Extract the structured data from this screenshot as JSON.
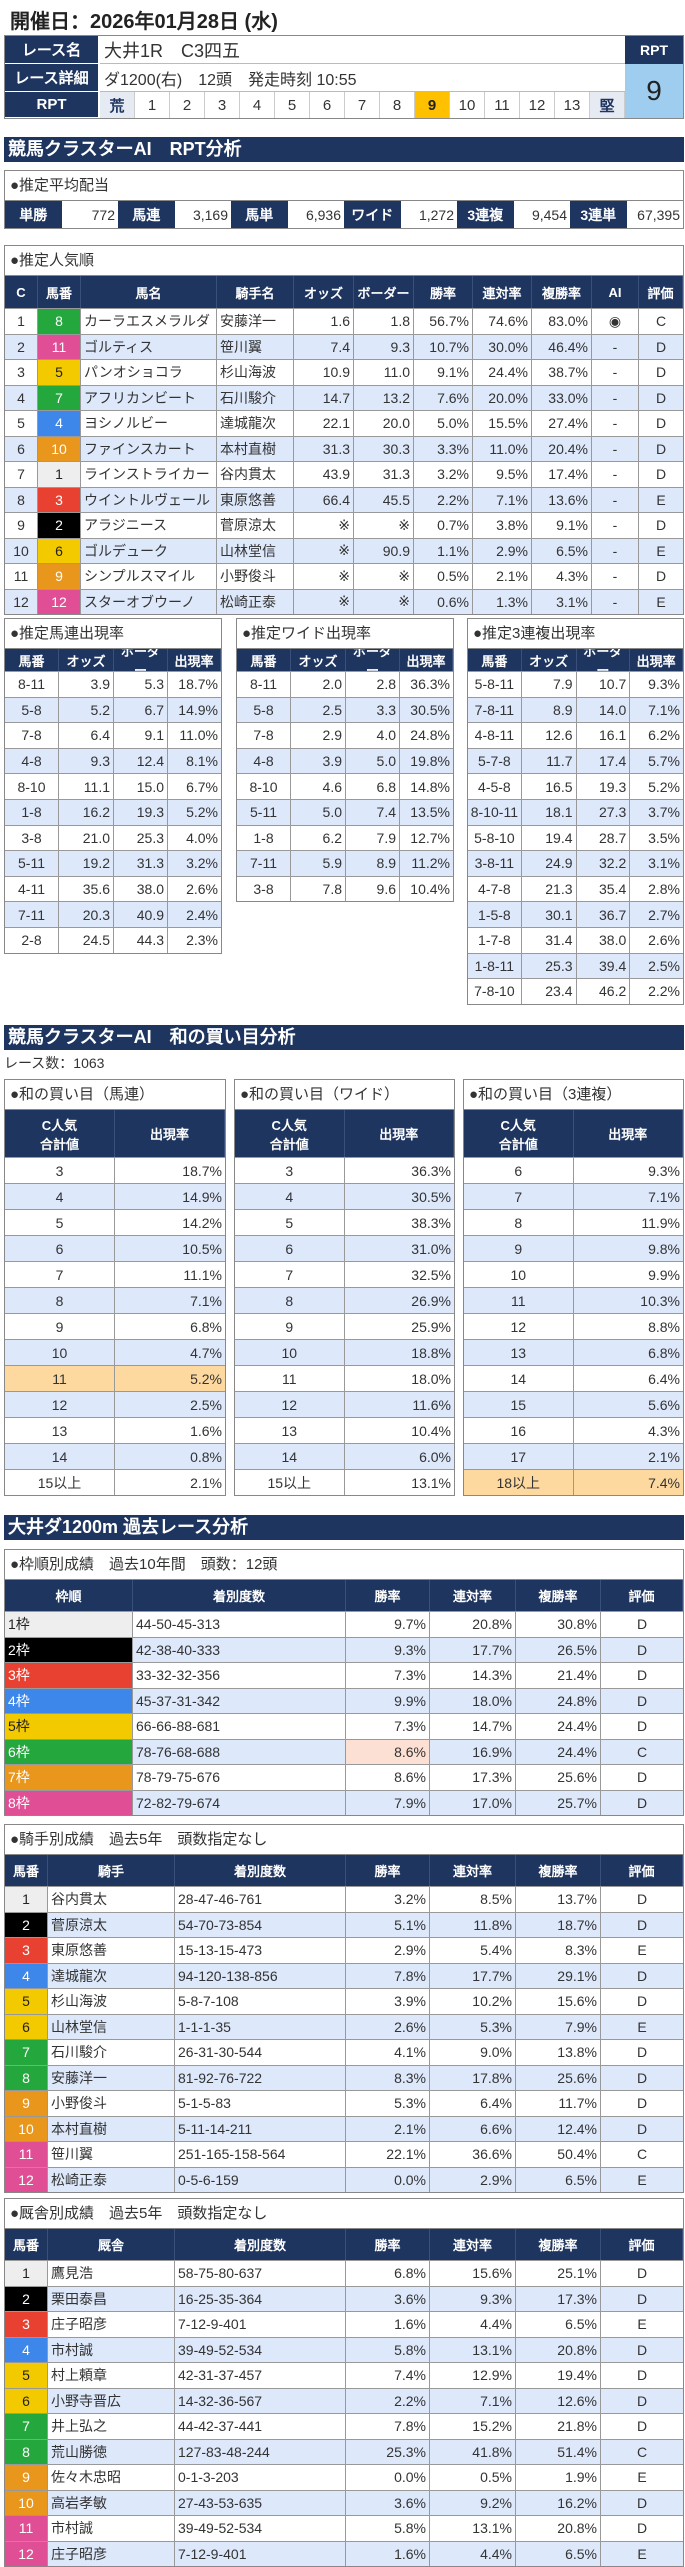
{
  "header": {
    "date": "開催日：2026年01月28日 (水)"
  },
  "race": {
    "name_label": "レース名",
    "name": "大井1R　C3四五",
    "detail_label": "レース詳細",
    "detail": "ダ1200(右)　12頭　発走時刻 10:55",
    "rpt_label": "RPT",
    "rpt_scale": [
      "荒",
      "1",
      "2",
      "3",
      "4",
      "5",
      "6",
      "7",
      "8",
      "9",
      "10",
      "11",
      "12",
      "13",
      "堅"
    ],
    "rpt_selected": "9",
    "rpt_box_label": "RPT",
    "rpt_value": "9"
  },
  "sections": {
    "rpt_analysis": "競馬クラスターAI　RPT分析",
    "sum_analysis": "競馬クラスターAI　和の買い目分析",
    "past": "大井ダ1200m 過去レース分析"
  },
  "colors": {
    "navy": "#1e3560",
    "alt_row": "#dde8fb",
    "highlight": "#fdd9a0",
    "rpt_selected": "#ffc000",
    "rpt_box": "#9fcdf0"
  },
  "frame_colors": {
    "1": {
      "bg": "#eeeeee",
      "fg": "#222"
    },
    "2": {
      "bg": "#000000",
      "fg": "#fff"
    },
    "3": {
      "bg": "#e84131",
      "fg": "#fff"
    },
    "4": {
      "bg": "#3d86ea",
      "fg": "#fff"
    },
    "5": {
      "bg": "#f3ca00",
      "fg": "#222"
    },
    "6": {
      "bg": "#24a83d",
      "fg": "#fff"
    },
    "7": {
      "bg": "#e8961c",
      "fg": "#fff"
    },
    "8": {
      "bg": "#e04f95",
      "fg": "#fff"
    }
  },
  "payout": {
    "title": "●推定平均配当",
    "items": [
      {
        "label": "単勝",
        "value": "772"
      },
      {
        "label": "馬連",
        "value": "3,169"
      },
      {
        "label": "馬単",
        "value": "6,936"
      },
      {
        "label": "ワイド",
        "value": "1,272"
      },
      {
        "label": "3連複",
        "value": "9,454"
      },
      {
        "label": "3連単",
        "value": "67,395"
      }
    ]
  },
  "popularity": {
    "title": "●推定人気順",
    "columns": [
      "C",
      "馬番",
      "馬名",
      "騎手名",
      "オッズ",
      "ボーダー",
      "勝率",
      "連対率",
      "複勝率",
      "AI",
      "評価"
    ],
    "rows": [
      [
        "1",
        "8",
        "カーラエスメラルダ",
        "安藤洋一",
        "1.6",
        "1.8",
        "56.7%",
        "74.6%",
        "83.0%",
        "◉",
        "C"
      ],
      [
        "2",
        "11",
        "ゴルティス",
        "笹川翼",
        "7.4",
        "9.3",
        "10.7%",
        "30.0%",
        "46.4%",
        "-",
        "D"
      ],
      [
        "3",
        "5",
        "パンオショコラ",
        "杉山海波",
        "10.9",
        "11.0",
        "9.1%",
        "24.4%",
        "38.7%",
        "-",
        "D"
      ],
      [
        "4",
        "7",
        "アフリカンビート",
        "石川駿介",
        "14.7",
        "13.2",
        "7.6%",
        "20.0%",
        "33.0%",
        "-",
        "D"
      ],
      [
        "5",
        "4",
        "ヨシノルビー",
        "達城龍次",
        "22.1",
        "20.0",
        "5.0%",
        "15.5%",
        "27.4%",
        "-",
        "D"
      ],
      [
        "6",
        "10",
        "ファインスカート",
        "本村直樹",
        "31.3",
        "30.3",
        "3.3%",
        "11.0%",
        "20.4%",
        "-",
        "D"
      ],
      [
        "7",
        "1",
        "ラインストライカー",
        "谷内貫太",
        "43.9",
        "31.3",
        "3.2%",
        "9.5%",
        "17.4%",
        "-",
        "D"
      ],
      [
        "8",
        "3",
        "ウイントルヴェール",
        "東原悠善",
        "66.4",
        "45.5",
        "2.2%",
        "7.1%",
        "13.6%",
        "-",
        "E"
      ],
      [
        "9",
        "2",
        "アラジニース",
        "菅原涼太",
        "※",
        "※",
        "0.7%",
        "3.8%",
        "9.1%",
        "-",
        "D"
      ],
      [
        "10",
        "6",
        "ゴルデューク",
        "山林堂信",
        "※",
        "90.9",
        "1.1%",
        "2.9%",
        "6.5%",
        "-",
        "E"
      ],
      [
        "11",
        "9",
        "シンプルスマイル",
        "小野俊斗",
        "※",
        "※",
        "0.5%",
        "2.1%",
        "4.3%",
        "-",
        "D"
      ],
      [
        "12",
        "12",
        "スターオブウーノ",
        "松崎正泰",
        "※",
        "※",
        "0.6%",
        "1.3%",
        "3.1%",
        "-",
        "E"
      ]
    ]
  },
  "umaren": {
    "title": "●推定馬連出現率",
    "columns": [
      "馬番",
      "オッズ",
      "ボーダー",
      "出現率"
    ],
    "rows": [
      [
        "8-11",
        "3.9",
        "5.3",
        "18.7%"
      ],
      [
        "5-8",
        "5.2",
        "6.7",
        "14.9%"
      ],
      [
        "7-8",
        "6.4",
        "9.1",
        "11.0%"
      ],
      [
        "4-8",
        "9.3",
        "12.4",
        "8.1%"
      ],
      [
        "8-10",
        "11.1",
        "15.0",
        "6.7%"
      ],
      [
        "1-8",
        "16.2",
        "19.3",
        "5.2%"
      ],
      [
        "3-8",
        "21.0",
        "25.3",
        "4.0%"
      ],
      [
        "5-11",
        "19.2",
        "31.3",
        "3.2%"
      ],
      [
        "4-11",
        "35.6",
        "38.0",
        "2.6%"
      ],
      [
        "7-11",
        "20.3",
        "40.9",
        "2.4%"
      ],
      [
        "2-8",
        "24.5",
        "44.3",
        "2.3%"
      ]
    ]
  },
  "wide": {
    "title": "●推定ワイド出現率",
    "columns": [
      "馬番",
      "オッズ",
      "ボーダー",
      "出現率"
    ],
    "rows": [
      [
        "8-11",
        "2.0",
        "2.8",
        "36.3%"
      ],
      [
        "5-8",
        "2.5",
        "3.3",
        "30.5%"
      ],
      [
        "7-8",
        "2.9",
        "4.0",
        "24.8%"
      ],
      [
        "4-8",
        "3.9",
        "5.0",
        "19.8%"
      ],
      [
        "8-10",
        "4.6",
        "6.8",
        "14.8%"
      ],
      [
        "5-11",
        "5.0",
        "7.4",
        "13.5%"
      ],
      [
        "1-8",
        "6.2",
        "7.9",
        "12.7%"
      ],
      [
        "7-11",
        "5.9",
        "8.9",
        "11.2%"
      ],
      [
        "3-8",
        "7.8",
        "9.6",
        "10.4%"
      ]
    ]
  },
  "sanrenpuku": {
    "title": "●推定3連複出現率",
    "columns": [
      "馬番",
      "オッズ",
      "ボーダー",
      "出現率"
    ],
    "rows": [
      [
        "5-8-11",
        "7.9",
        "10.7",
        "9.3%"
      ],
      [
        "7-8-11",
        "8.9",
        "14.0",
        "7.1%"
      ],
      [
        "4-8-11",
        "12.6",
        "16.1",
        "6.2%"
      ],
      [
        "5-7-8",
        "11.7",
        "17.4",
        "5.7%"
      ],
      [
        "4-5-8",
        "16.5",
        "19.3",
        "5.2%"
      ],
      [
        "8-10-11",
        "18.1",
        "27.3",
        "3.7%"
      ],
      [
        "5-8-10",
        "19.4",
        "28.7",
        "3.5%"
      ],
      [
        "3-8-11",
        "24.9",
        "32.2",
        "3.1%"
      ],
      [
        "4-7-8",
        "21.3",
        "35.4",
        "2.8%"
      ],
      [
        "1-5-8",
        "30.1",
        "36.7",
        "2.7%"
      ],
      [
        "1-7-8",
        "31.4",
        "38.0",
        "2.6%"
      ],
      [
        "1-8-11",
        "25.3",
        "39.4",
        "2.5%"
      ],
      [
        "7-8-10",
        "23.4",
        "46.2",
        "2.2%"
      ]
    ]
  },
  "race_count": "レース数：1063",
  "sum_umaren": {
    "title": "●和の買い目（馬連）",
    "columns": [
      "C人気\n合計値",
      "出現率"
    ],
    "highlighted_row": "11",
    "rows": [
      [
        "3",
        "18.7%"
      ],
      [
        "4",
        "14.9%"
      ],
      [
        "5",
        "14.2%"
      ],
      [
        "6",
        "10.5%"
      ],
      [
        "7",
        "11.1%"
      ],
      [
        "8",
        "7.1%"
      ],
      [
        "9",
        "6.8%"
      ],
      [
        "10",
        "4.7%"
      ],
      [
        "11",
        "5.2%"
      ],
      [
        "12",
        "2.5%"
      ],
      [
        "13",
        "1.6%"
      ],
      [
        "14",
        "0.8%"
      ],
      [
        "15以上",
        "2.1%"
      ]
    ]
  },
  "sum_wide": {
    "title": "●和の買い目（ワイド）",
    "columns": [
      "C人気\n合計値",
      "出現率"
    ],
    "rows": [
      [
        "3",
        "36.3%"
      ],
      [
        "4",
        "30.5%"
      ],
      [
        "5",
        "38.3%"
      ],
      [
        "6",
        "31.0%"
      ],
      [
        "7",
        "32.5%"
      ],
      [
        "8",
        "26.9%"
      ],
      [
        "9",
        "25.9%"
      ],
      [
        "10",
        "18.8%"
      ],
      [
        "11",
        "18.0%"
      ],
      [
        "12",
        "11.6%"
      ],
      [
        "13",
        "10.4%"
      ],
      [
        "14",
        "6.0%"
      ],
      [
        "15以上",
        "13.1%"
      ]
    ]
  },
  "sum_sanrenpuku": {
    "title": "●和の買い目（3連複）",
    "columns": [
      "C人気\n合計値",
      "出現率"
    ],
    "highlighted_row": "18以上",
    "rows": [
      [
        "6",
        "9.3%"
      ],
      [
        "7",
        "7.1%"
      ],
      [
        "8",
        "11.9%"
      ],
      [
        "9",
        "9.8%"
      ],
      [
        "10",
        "9.9%"
      ],
      [
        "11",
        "10.3%"
      ],
      [
        "12",
        "8.8%"
      ],
      [
        "13",
        "6.8%"
      ],
      [
        "14",
        "6.4%"
      ],
      [
        "15",
        "5.6%"
      ],
      [
        "16",
        "4.3%"
      ],
      [
        "17",
        "2.1%"
      ],
      [
        "18以上",
        "7.4%"
      ]
    ]
  },
  "waku": {
    "title": "●枠順別成績　過去10年間　頭数：12頭",
    "columns": [
      "枠順",
      "着別度数",
      "勝率",
      "連対率",
      "複勝率",
      "評価"
    ],
    "highlighted_cell": {
      "row": "6枠",
      "column": "勝率"
    },
    "rows": [
      [
        "1枠",
        "44-50-45-313",
        "9.7%",
        "20.8%",
        "30.8%",
        "D"
      ],
      [
        "2枠",
        "42-38-40-333",
        "9.3%",
        "17.7%",
        "26.5%",
        "D"
      ],
      [
        "3枠",
        "33-32-32-356",
        "7.3%",
        "14.3%",
        "21.4%",
        "D"
      ],
      [
        "4枠",
        "45-37-31-342",
        "9.9%",
        "18.0%",
        "24.8%",
        "D"
      ],
      [
        "5枠",
        "66-66-88-681",
        "7.3%",
        "14.7%",
        "24.4%",
        "D"
      ],
      [
        "6枠",
        "78-76-68-688",
        "8.6%",
        "16.9%",
        "24.4%",
        "C"
      ],
      [
        "7枠",
        "78-79-75-676",
        "8.6%",
        "17.3%",
        "25.6%",
        "D"
      ],
      [
        "8枠",
        "72-82-79-674",
        "7.9%",
        "17.0%",
        "25.7%",
        "D"
      ]
    ]
  },
  "jockey": {
    "title": "●騎手別成績　過去5年　頭数指定なし",
    "columns": [
      "馬番",
      "騎手",
      "着別度数",
      "勝率",
      "連対率",
      "複勝率",
      "評価"
    ],
    "rows": [
      [
        "1",
        "谷内貫太",
        "28-47-46-761",
        "3.2%",
        "8.5%",
        "13.7%",
        "D"
      ],
      [
        "2",
        "菅原涼太",
        "54-70-73-854",
        "5.1%",
        "11.8%",
        "18.7%",
        "D"
      ],
      [
        "3",
        "東原悠善",
        "15-13-15-473",
        "2.9%",
        "5.4%",
        "8.3%",
        "E"
      ],
      [
        "4",
        "達城龍次",
        "94-120-138-856",
        "7.8%",
        "17.7%",
        "29.1%",
        "D"
      ],
      [
        "5",
        "杉山海波",
        "5-8-7-108",
        "3.9%",
        "10.2%",
        "15.6%",
        "D"
      ],
      [
        "6",
        "山林堂信",
        "1-1-1-35",
        "2.6%",
        "5.3%",
        "7.9%",
        "E"
      ],
      [
        "7",
        "石川駿介",
        "26-31-30-544",
        "4.1%",
        "9.0%",
        "13.8%",
        "D"
      ],
      [
        "8",
        "安藤洋一",
        "81-92-76-722",
        "8.3%",
        "17.8%",
        "25.6%",
        "D"
      ],
      [
        "9",
        "小野俊斗",
        "5-1-5-83",
        "5.3%",
        "6.4%",
        "11.7%",
        "D"
      ],
      [
        "10",
        "本村直樹",
        "5-11-14-211",
        "2.1%",
        "6.6%",
        "12.4%",
        "D"
      ],
      [
        "11",
        "笹川翼",
        "251-165-158-564",
        "22.1%",
        "36.6%",
        "50.4%",
        "C"
      ],
      [
        "12",
        "松崎正泰",
        "0-5-6-159",
        "0.0%",
        "2.9%",
        "6.5%",
        "E"
      ]
    ]
  },
  "trainer": {
    "title": "●厩舎別成績　過去5年　頭数指定なし",
    "columns": [
      "馬番",
      "厩舎",
      "着別度数",
      "勝率",
      "連対率",
      "複勝率",
      "評価"
    ],
    "rows": [
      [
        "1",
        "鷹見浩",
        "58-75-80-637",
        "6.8%",
        "15.6%",
        "25.1%",
        "D"
      ],
      [
        "2",
        "栗田泰昌",
        "16-25-35-364",
        "3.6%",
        "9.3%",
        "17.3%",
        "D"
      ],
      [
        "3",
        "庄子昭彦",
        "7-12-9-401",
        "1.6%",
        "4.4%",
        "6.5%",
        "E"
      ],
      [
        "4",
        "市村誠",
        "39-49-52-534",
        "5.8%",
        "13.1%",
        "20.8%",
        "D"
      ],
      [
        "5",
        "村上頼章",
        "42-31-37-457",
        "7.4%",
        "12.9%",
        "19.4%",
        "D"
      ],
      [
        "6",
        "小野寺晋広",
        "14-32-36-567",
        "2.2%",
        "7.1%",
        "12.6%",
        "D"
      ],
      [
        "7",
        "井上弘之",
        "44-42-37-441",
        "7.8%",
        "15.2%",
        "21.8%",
        "D"
      ],
      [
        "8",
        "荒山勝徳",
        "127-83-48-244",
        "25.3%",
        "41.8%",
        "51.4%",
        "C"
      ],
      [
        "9",
        "佐々木忠昭",
        "0-1-3-203",
        "0.0%",
        "0.5%",
        "1.9%",
        "E"
      ],
      [
        "10",
        "高岩孝敏",
        "27-43-53-635",
        "3.6%",
        "9.2%",
        "16.2%",
        "D"
      ],
      [
        "11",
        "市村誠",
        "39-49-52-534",
        "5.8%",
        "13.1%",
        "20.8%",
        "D"
      ],
      [
        "12",
        "庄子昭彦",
        "7-12-9-401",
        "1.6%",
        "4.4%",
        "6.5%",
        "E"
      ]
    ]
  }
}
